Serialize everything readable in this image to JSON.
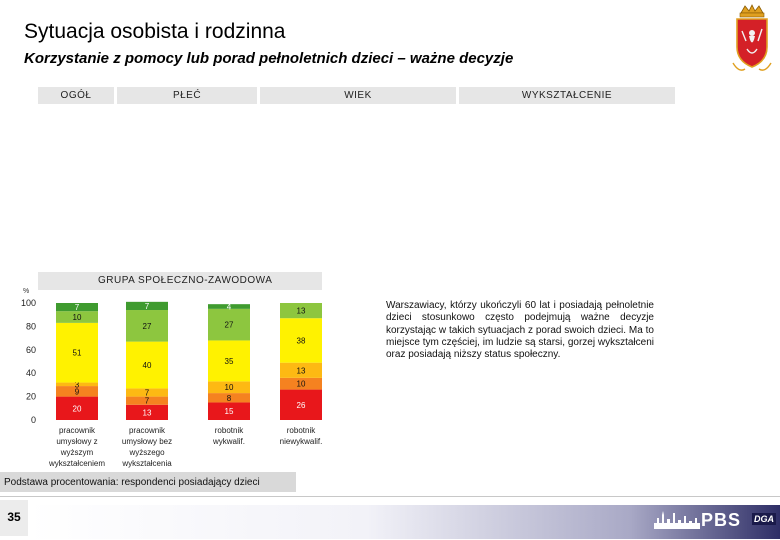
{
  "header": {
    "title": "Sytuacja osobista i rodzinna",
    "subtitle": "Korzystanie z pomocy lub porad pełnoletnich dzieci – ważne decyzje"
  },
  "columns": [
    "OGÓŁ",
    "PŁEĆ",
    "WIEK",
    "WYKSZTAŁCENIE"
  ],
  "section_label": "GRUPA SPOŁECZNO-ZAWODOWA",
  "chart_data": {
    "type": "bar",
    "stacked": true,
    "y_axis_label": "%",
    "ylim": [
      0,
      100
    ],
    "yticks": [
      "0",
      "20",
      "40",
      "60",
      "80",
      "100"
    ],
    "categories": [
      [
        "pracownik",
        "umysłowy z",
        "wyższym",
        "wykształceniem"
      ],
      [
        "pracownik",
        "umysłowy bez",
        "wyższego",
        "wykształcenia"
      ],
      [
        "robotnik",
        "wykwalif."
      ],
      [
        "robotnik",
        "niewykwalif."
      ]
    ],
    "series": [
      {
        "color": "#e8171b",
        "values": [
          20,
          13,
          15,
          26
        ],
        "labels": [
          "20",
          "13",
          "15",
          "26"
        ]
      },
      {
        "color": "#f58220",
        "values": [
          9,
          7,
          8,
          10
        ],
        "labels": [
          "9",
          "7",
          "8",
          "10"
        ]
      },
      {
        "color": "#fdb913",
        "values": [
          3,
          7,
          10,
          13
        ],
        "labels": [
          "3",
          "7",
          "10",
          "13"
        ]
      },
      {
        "color": "#fff200",
        "values": [
          51,
          40,
          35,
          38
        ],
        "labels": [
          "51",
          "40",
          "35",
          "38"
        ]
      },
      {
        "color": "#8dc63f",
        "values": [
          10,
          27,
          27,
          13
        ],
        "labels": [
          "10",
          "27",
          "27",
          "13"
        ]
      },
      {
        "color": "#3f9b2f",
        "values": [
          7,
          7,
          4,
          0
        ],
        "labels": [
          "7",
          "7",
          "4",
          ""
        ]
      }
    ]
  },
  "description": "Warszawiacy, którzy ukończyli 60 lat i posiadają pełnoletnie dzieci stosunkowo często podejmują ważne decyzje korzystając w takich sytuacjach z porad swoich dzieci. Ma to miejsce tym częściej, im ludzie są starsi, gorzej wykształceni oraz posiadają niższy status społeczny.",
  "footnote": "Podstawa procentowania: respondenci posiadający dzieci",
  "page_number": "35",
  "brand": {
    "logo_text": "PBS",
    "partner_text": "DGA"
  }
}
